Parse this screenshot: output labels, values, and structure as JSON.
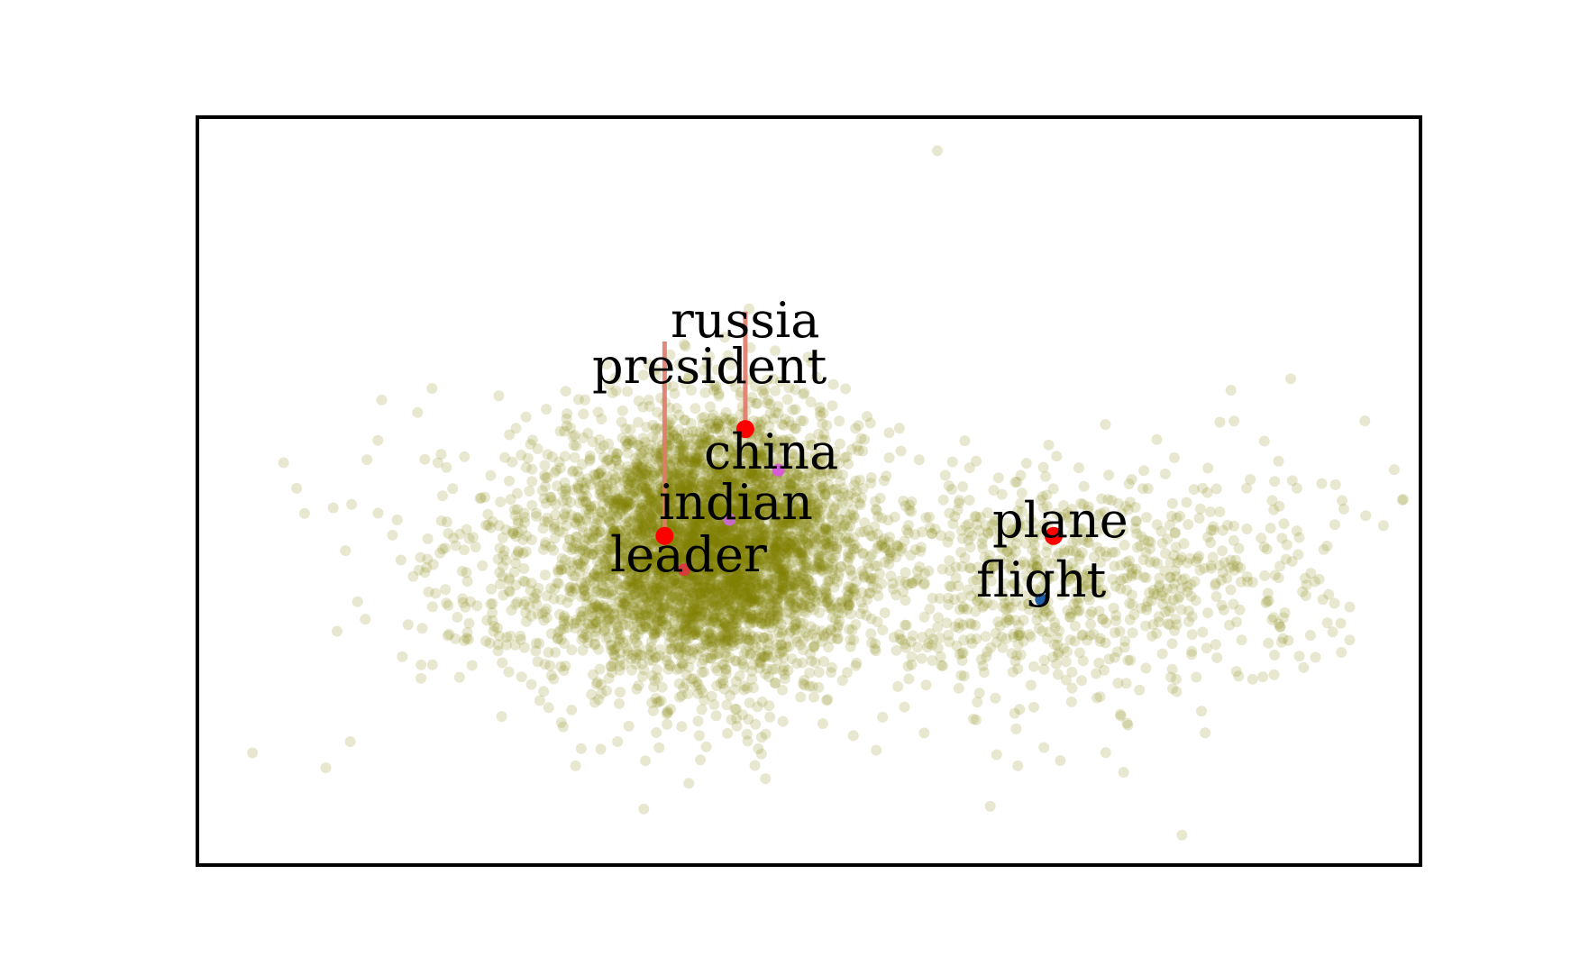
{
  "chart_data": {
    "type": "scatter",
    "title": "",
    "xlabel": "",
    "ylabel": "",
    "grid": false,
    "xlim": [
      0,
      100
    ],
    "ylim": [
      0,
      100
    ],
    "axes_ticks": false,
    "background_cloud": {
      "color": "#808000",
      "opacity": 0.18,
      "approx_count": 6000,
      "description_points": "dense olive point cloud with main mass left-center and a secondary sparse lobe to the right"
    },
    "highlighted_points": [
      {
        "label": "russia",
        "x": 44.8,
        "y": 58.3,
        "color": "#ff0000"
      },
      {
        "label": "president",
        "x": 38.2,
        "y": 44.0,
        "color": "#ff0000"
      },
      {
        "label": "china",
        "x": 47.5,
        "y": 52.8,
        "color": "#d85bd8"
      },
      {
        "label": "indian",
        "x": 43.5,
        "y": 46.2,
        "color": "#c86bc8"
      },
      {
        "label": "leader",
        "x": 39.8,
        "y": 39.5,
        "color": "#d63c3c"
      },
      {
        "label": "plane",
        "x": 70.0,
        "y": 44.0,
        "color": "#ff0000"
      },
      {
        "label": "flight",
        "x": 69.0,
        "y": 35.5,
        "color": "#1f5fa8"
      }
    ],
    "connectors": [
      {
        "from": "russia",
        "to": "president_label",
        "color": "#e07a6a"
      },
      {
        "from": "president",
        "to": "president_label",
        "color": "#e07a6a"
      }
    ]
  }
}
